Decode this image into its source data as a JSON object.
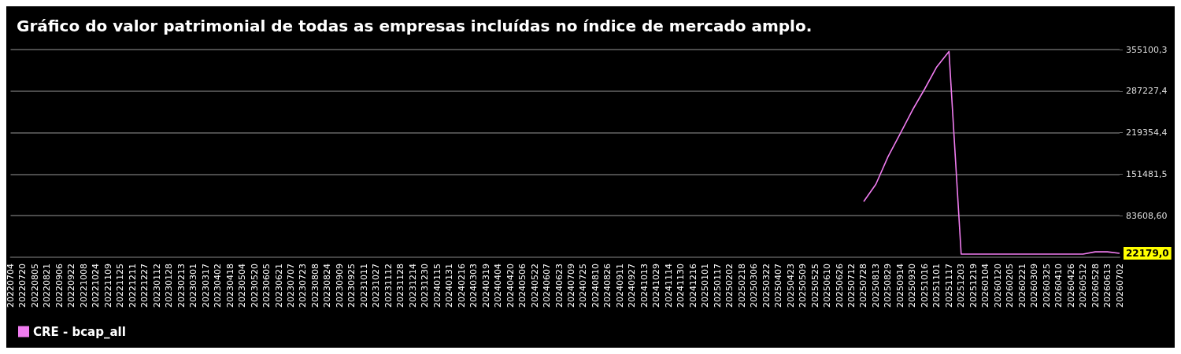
{
  "chart_data": {
    "type": "line",
    "title": "Gráfico do valor patrimonial de todas as empresas incluídas no índice de mercado amplo.",
    "categories": [
      "20220704",
      "20220720",
      "20220805",
      "20220821",
      "20220906",
      "20220922",
      "20221008",
      "20221024",
      "20221109",
      "20221125",
      "20221211",
      "20221227",
      "20230112",
      "20230128",
      "20230213",
      "20230301",
      "20230317",
      "20230402",
      "20230418",
      "20230504",
      "20230520",
      "20230605",
      "20230621",
      "20230707",
      "20230723",
      "20230808",
      "20230824",
      "20230909",
      "20230925",
      "20231011",
      "20231027",
      "20231112",
      "20231128",
      "20231214",
      "20231230",
      "20240115",
      "20240131",
      "20240216",
      "20240303",
      "20240319",
      "20240404",
      "20240420",
      "20240506",
      "20240522",
      "20240607",
      "20240623",
      "20240709",
      "20240725",
      "20240810",
      "20240826",
      "20240911",
      "20240927",
      "20241013",
      "20241029",
      "20241114",
      "20241130",
      "20241216",
      "20250101",
      "20250117",
      "20250202",
      "20250218",
      "20250306",
      "20250322",
      "20250407",
      "20250423",
      "20250509",
      "20250525",
      "20250610",
      "20250626",
      "20250712",
      "20250728",
      "20250813",
      "20250829",
      "20250914",
      "20250930",
      "20251016",
      "20251101",
      "20251117",
      "20251203",
      "20251219",
      "20260104",
      "20260120",
      "20260205",
      "20260221",
      "20260309",
      "20260325",
      "20260410",
      "20260426",
      "20260512",
      "20260528",
      "20260613",
      "20260702"
    ],
    "series": [
      {
        "name": "CRE - bcap_all",
        "color": "#f07cf0",
        "values": [
          null,
          null,
          null,
          null,
          null,
          null,
          null,
          null,
          null,
          null,
          null,
          null,
          null,
          null,
          null,
          null,
          null,
          null,
          null,
          null,
          null,
          null,
          null,
          null,
          null,
          null,
          null,
          null,
          null,
          null,
          null,
          null,
          null,
          null,
          null,
          null,
          null,
          null,
          null,
          null,
          null,
          null,
          null,
          null,
          null,
          null,
          null,
          null,
          null,
          null,
          null,
          null,
          null,
          null,
          null,
          null,
          null,
          null,
          null,
          null,
          null,
          null,
          null,
          null,
          null,
          null,
          null,
          null,
          null,
          null,
          106600,
          134900,
          180200,
          217800,
          256100,
          290500,
          326900,
          352000,
          20900,
          20900,
          20900,
          20900,
          20900,
          20900,
          20900,
          20900,
          20900,
          20900,
          20900,
          24600,
          24600,
          22179.0
        ],
        "value_labels": [
          null,
          null,
          null,
          null,
          null,
          null,
          null,
          null,
          null,
          null,
          null,
          null,
          null,
          null,
          null,
          null,
          null,
          null,
          null,
          null,
          null,
          null,
          null,
          null,
          null,
          null,
          null,
          null,
          null,
          null,
          null,
          null,
          null,
          null,
          null,
          null,
          null,
          null,
          null,
          null,
          null,
          null,
          null,
          null,
          null,
          null,
          null,
          null,
          null,
          null,
          null,
          null,
          null,
          null,
          null,
          null,
          null,
          null,
          null,
          null,
          null,
          null,
          null,
          null,
          null,
          null,
          null,
          null,
          null,
          null,
          null,
          null,
          null,
          null,
          null,
          null,
          null,
          null,
          null,
          null,
          null,
          null,
          null,
          null,
          null,
          null,
          null,
          null,
          null,
          null,
          null,
          "22179,0"
        ]
      }
    ],
    "ylim": [
      15735.7,
      355100.3
    ],
    "yticks": [
      {
        "value": 83608.6,
        "label": "83608,60"
      },
      {
        "value": 151481.5,
        "label": "151481,5"
      },
      {
        "value": 219354.4,
        "label": "219354,4"
      },
      {
        "value": 287227.4,
        "label": "287227,4"
      },
      {
        "value": 355100.3,
        "label": "355100,3"
      }
    ],
    "grid": "y",
    "legend": "bottom left",
    "marker": "none",
    "line_style": "solid"
  }
}
